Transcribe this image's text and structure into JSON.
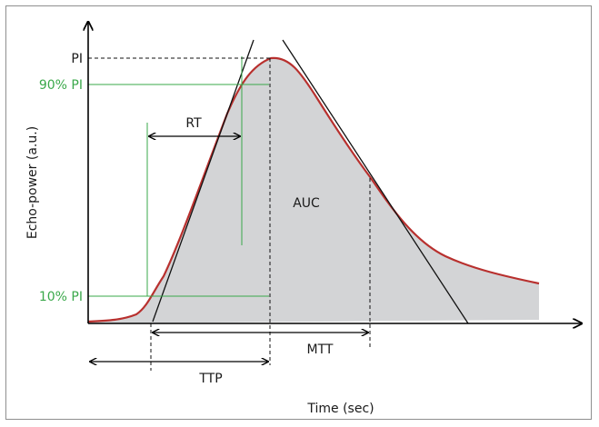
{
  "diagram": {
    "y_axis_label": "Echo-power (a.u.)",
    "x_axis_label": "Time (sec)",
    "labels": {
      "pi": "PI",
      "pi90": "90% PI",
      "pi10": "10% PI",
      "rt": "RT",
      "auc": "AUC",
      "mtt": "MTT",
      "ttp": "TTP"
    },
    "colors": {
      "curve": "#b8302e",
      "fill": "#d3d4d6",
      "green": "#3aa84a",
      "axis": "#000000"
    }
  }
}
